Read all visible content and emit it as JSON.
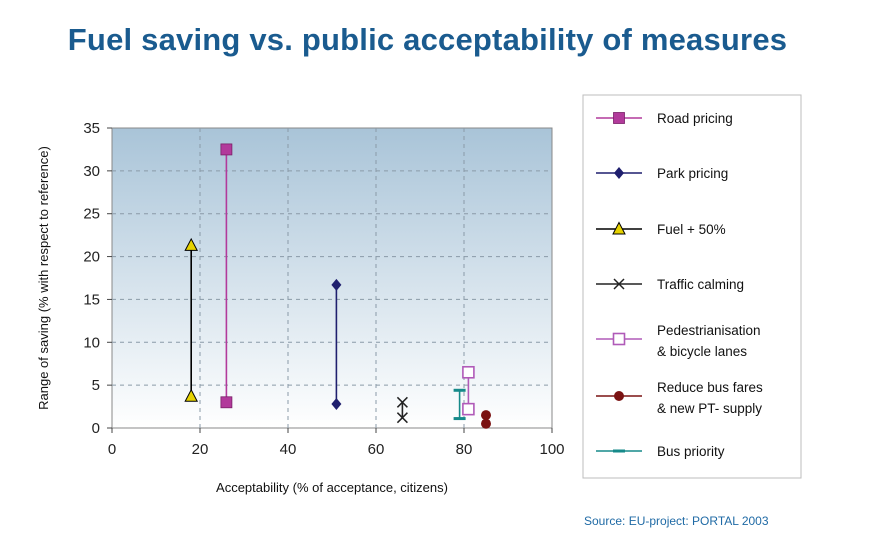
{
  "header": {
    "title": "Fuel saving vs. public acceptability of measures"
  },
  "footer": {
    "source": "Source: EU-project: PORTAL 2003"
  },
  "chart_data": {
    "type": "scatter",
    "title": "Fuel saving vs. public acceptability of measures",
    "xlabel": "Acceptability (% of acceptance, citizens)",
    "ylabel": "Range of saving (% with respect to reference)",
    "xlim": [
      0,
      100
    ],
    "ylim": [
      0,
      35
    ],
    "xticks": [
      0,
      20,
      40,
      60,
      80,
      100
    ],
    "yticks": [
      0,
      5,
      10,
      15,
      20,
      25,
      30,
      35
    ],
    "grid": true,
    "legend_position": "right",
    "series": [
      {
        "name": "Road pricing",
        "marker": "square",
        "color": "#b23a9b",
        "points": [
          [
            26,
            32.5
          ],
          [
            26,
            3
          ]
        ]
      },
      {
        "name": "Park pricing",
        "marker": "diamond",
        "color": "#1f1f6e",
        "points": [
          [
            51,
            16.7
          ],
          [
            51,
            2.8
          ]
        ]
      },
      {
        "name": "Fuel + 50%",
        "marker": "triangle",
        "color": "#e6d200",
        "line_color": "#000000",
        "points": [
          [
            18,
            21.3
          ],
          [
            18,
            3.7
          ]
        ]
      },
      {
        "name": "Traffic calming",
        "marker": "x",
        "color": "#222222",
        "points": [
          [
            66,
            3
          ],
          [
            66,
            1.2
          ]
        ]
      },
      {
        "name": "Pedestrianisation & bycicle lanes",
        "marker": "open-square",
        "color": "#b05ab8",
        "points": [
          [
            81,
            6.5
          ],
          [
            81,
            2.2
          ]
        ]
      },
      {
        "name": "Reduce bus fares & new PT- supply",
        "marker": "circle",
        "color": "#7a1212",
        "points": [
          [
            85,
            1.5
          ],
          [
            85,
            0.5
          ]
        ]
      },
      {
        "name": "Bus priority",
        "marker": "dash",
        "color": "#168a8a",
        "points": [
          [
            79,
            4.4
          ],
          [
            79,
            1.1
          ]
        ]
      }
    ],
    "legend": [
      {
        "label_lines": [
          "Road pricing"
        ]
      },
      {
        "label_lines": [
          "Park pricing"
        ]
      },
      {
        "label_lines": [
          "Fuel + 50%"
        ]
      },
      {
        "label_lines": [
          "Traffic calming"
        ]
      },
      {
        "label_lines": [
          "Pedestrianisation",
          "& bicycle lanes"
        ]
      },
      {
        "label_lines": [
          "Reduce bus  fares",
          "& new PT- supply"
        ]
      },
      {
        "label_lines": [
          "Bus priority"
        ]
      }
    ]
  }
}
